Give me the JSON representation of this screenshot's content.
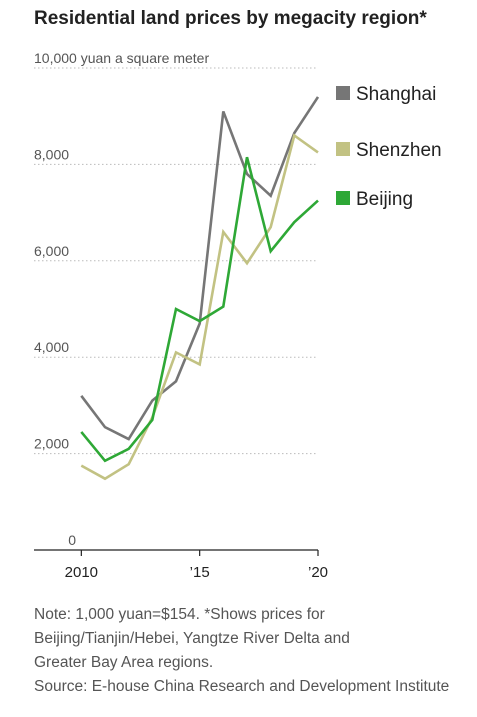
{
  "chart_data": {
    "type": "line",
    "title": "Residential land prices by megacity region*",
    "ylabel": "yuan a square meter",
    "ylim": [
      0,
      10000
    ],
    "yticks": [
      0,
      2000,
      4000,
      6000,
      8000,
      10000
    ],
    "ytick_labels": [
      "0",
      "2,000",
      "4,000",
      "6,000",
      "8,000",
      "10,000 yuan a square meter"
    ],
    "xlim": [
      2008,
      2020
    ],
    "xticks": [
      2010,
      2015,
      2020
    ],
    "xtick_labels": [
      "2010",
      "’15",
      "’20"
    ],
    "x": [
      2010,
      2011,
      2012,
      2013,
      2014,
      2015,
      2016,
      2017,
      2018,
      2019,
      2020
    ],
    "grid": true,
    "legend": "right",
    "series": [
      {
        "name": "Shanghai",
        "color": "#767676",
        "values": [
          3200,
          2550,
          2300,
          3100,
          3500,
          4700,
          9100,
          7800,
          7350,
          8650,
          9400
        ]
      },
      {
        "name": "Shenzhen",
        "color": "#c2c283",
        "values": [
          1750,
          1480,
          1780,
          2750,
          4100,
          3850,
          6600,
          5950,
          6700,
          8600,
          8250
        ]
      },
      {
        "name": "Beijing",
        "color": "#2ea836",
        "values": [
          2450,
          1850,
          2100,
          2700,
          5000,
          4750,
          5050,
          8150,
          6200,
          6800,
          7250
        ]
      }
    ]
  },
  "notes": {
    "line1": "Note: 1,000 yuan=$154. *Shows prices for",
    "line2": "Beijing/Tianjin/Hebei, Yangtze River Delta and",
    "line3": "Greater Bay Area regions.",
    "source": "Source: E-house China Research and Development Institute"
  }
}
